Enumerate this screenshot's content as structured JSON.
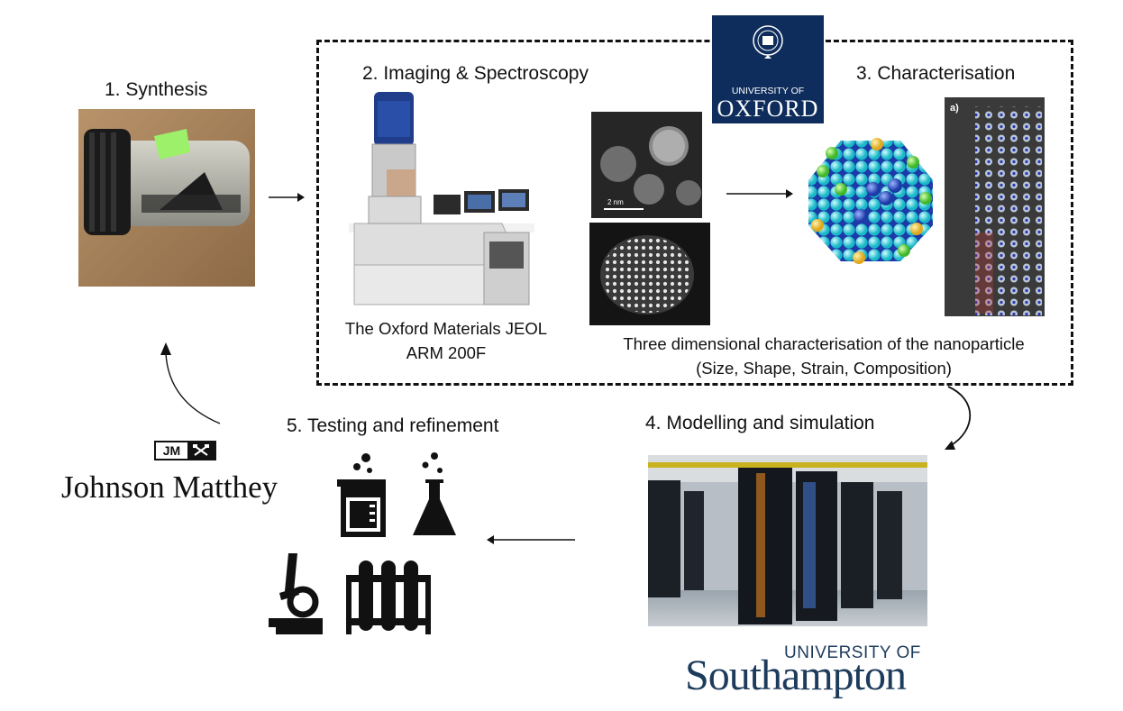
{
  "steps": {
    "synthesis": "1. Synthesis",
    "imaging": "2. Imaging & Spectroscopy",
    "characterisation": "3. Characterisation",
    "modelling": "4. Modelling and simulation",
    "testing": "5. Testing and refinement"
  },
  "captions": {
    "microscope_line1": "The Oxford Materials JEOL",
    "microscope_line2": "ARM 200F",
    "nanoparticle_line1": "Three dimensional characterisation of the nanoparticle",
    "nanoparticle_line2": "(Size, Shape, Strain, Composition)"
  },
  "logos": {
    "oxford_small": "UNIVERSITY OF",
    "oxford_big": "OXFORD",
    "jm_mark": "JM",
    "jm_name": "Johnson Matthey",
    "soton_small": "UNIVERSITY OF",
    "soton_big": "Southampton"
  },
  "image_labels": {
    "scale_bar": "2 nm",
    "panel_a": "a)"
  },
  "colors": {
    "oxford_blue": "#0e2d5c",
    "southampton_navy": "#1d3b5c",
    "arrow": "#111111"
  }
}
